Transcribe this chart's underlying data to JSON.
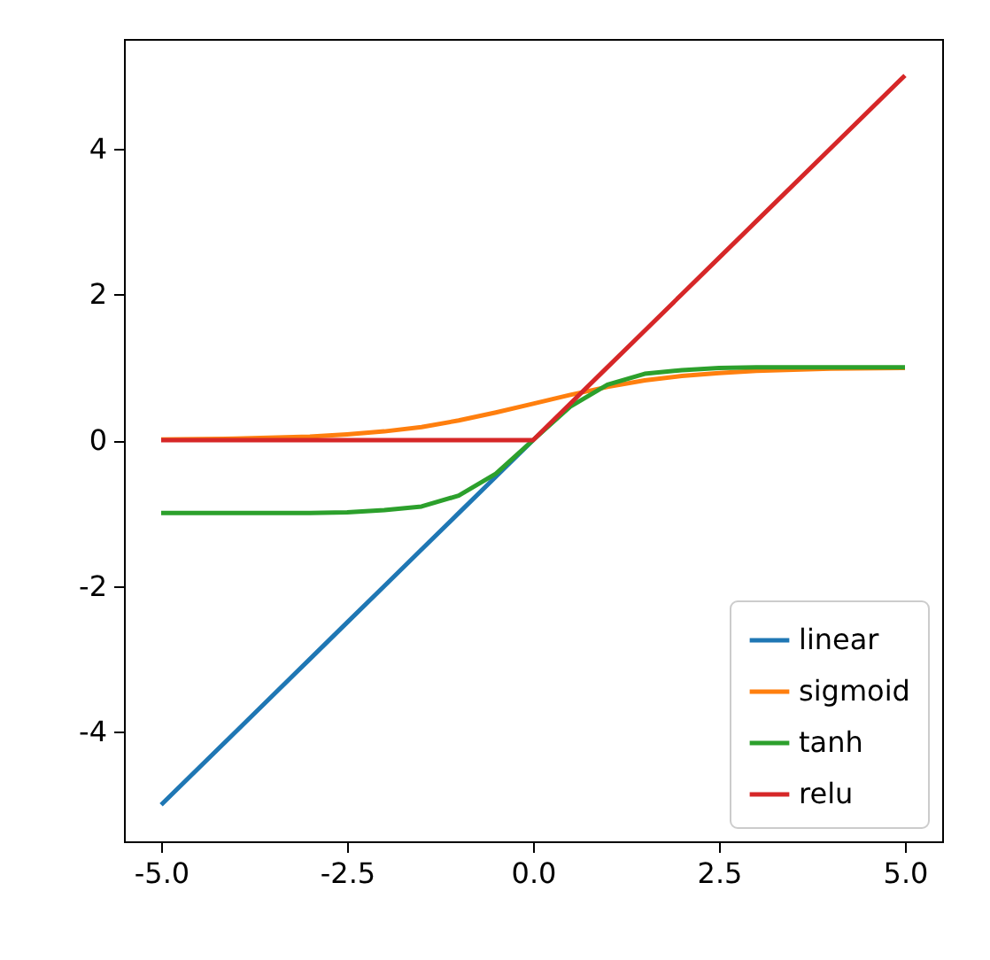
{
  "chart_data": {
    "type": "line",
    "x": [
      -5,
      -4,
      -3,
      -2.5,
      -2,
      -1.5,
      -1,
      -0.5,
      0,
      0.5,
      1,
      1.5,
      2,
      2.5,
      3,
      4,
      5
    ],
    "series": [
      {
        "name": "linear",
        "color": "#1f77b4",
        "values": [
          -5,
          -4,
          -3,
          -2.5,
          -2,
          -1.5,
          -1,
          -0.5,
          0,
          null,
          null,
          null,
          null,
          null,
          null,
          null,
          null
        ]
      },
      {
        "name": "sigmoid",
        "color": "#ff7f0e",
        "values": [
          0.01,
          0.02,
          0.05,
          0.08,
          0.12,
          0.18,
          0.27,
          0.38,
          0.5,
          0.62,
          0.73,
          0.82,
          0.88,
          0.92,
          0.95,
          0.98,
          0.99
        ]
      },
      {
        "name": "tanh",
        "color": "#2ca02c",
        "values": [
          -1,
          -1,
          -1,
          -0.99,
          -0.96,
          -0.91,
          -0.76,
          -0.46,
          0,
          0.46,
          0.76,
          0.91,
          0.96,
          0.99,
          1,
          1,
          1
        ]
      },
      {
        "name": "relu",
        "color": "#d62728",
        "values": [
          0,
          0,
          0,
          0,
          0,
          0,
          0,
          0,
          0,
          0.5,
          1,
          1.5,
          2,
          2.5,
          3,
          4,
          5
        ]
      }
    ],
    "xlim": [
      -5.5,
      5.5
    ],
    "xticks": [
      {
        "value": -5,
        "label": "-5.0"
      },
      {
        "value": -2.5,
        "label": "-2.5"
      },
      {
        "value": 0,
        "label": "0.0"
      },
      {
        "value": 2.5,
        "label": "2.5"
      },
      {
        "value": 5,
        "label": "5.0"
      }
    ],
    "ylim": [
      -5.5,
      5.5
    ],
    "yticks": [
      -4,
      -2,
      0,
      2,
      4
    ],
    "grid": false,
    "legend": "bottom right",
    "line_style": "solid",
    "marker": "none"
  }
}
